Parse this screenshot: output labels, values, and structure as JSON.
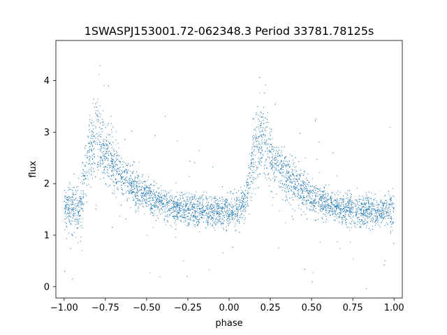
{
  "chart_data": {
    "type": "scatter",
    "title": "1SWASPJ153001.72-062348.3 Period 33781.78125s",
    "xlabel": "phase",
    "ylabel": "flux",
    "xlim": [
      -1.05,
      1.05
    ],
    "ylim": [
      -0.22,
      4.78
    ],
    "xticks": [
      -1.0,
      -0.75,
      -0.5,
      -0.25,
      0.0,
      0.25,
      0.5,
      0.75,
      1.0
    ],
    "xtick_labels": [
      "−1.00",
      "−0.75",
      "−0.50",
      "−0.25",
      "0.00",
      "0.25",
      "0.50",
      "0.75",
      "1.00"
    ],
    "yticks": [
      0,
      1,
      2,
      3,
      4
    ],
    "ytick_labels": [
      "0",
      "1",
      "2",
      "3",
      "4"
    ],
    "grid": false,
    "point_color": "#1f77b4",
    "series": [
      {
        "phase_profile": {
          "x": [
            -1.0,
            -0.95,
            -0.9,
            -0.85,
            -0.8,
            -0.75,
            -0.7,
            -0.65,
            -0.6,
            -0.55,
            -0.5,
            -0.45,
            -0.4,
            -0.35,
            -0.3,
            -0.25,
            -0.2,
            -0.15,
            -0.1,
            -0.05,
            0.0,
            0.05,
            0.1,
            0.15,
            0.2,
            0.25,
            0.3,
            0.35,
            0.4,
            0.45,
            0.5,
            0.55,
            0.6,
            0.65,
            0.7,
            0.75,
            0.8,
            0.85,
            0.9,
            0.95,
            1.0
          ],
          "y": [
            1.5,
            1.5,
            1.55,
            2.6,
            2.9,
            2.6,
            2.35,
            2.15,
            2.0,
            1.85,
            1.75,
            1.65,
            1.6,
            1.55,
            1.5,
            1.48,
            1.47,
            1.46,
            1.46,
            1.46,
            1.47,
            1.5,
            1.6,
            2.6,
            2.9,
            2.6,
            2.35,
            2.15,
            2.0,
            1.85,
            1.75,
            1.65,
            1.6,
            1.55,
            1.5,
            1.48,
            1.47,
            1.46,
            1.46,
            1.46,
            1.5
          ]
        },
        "scatter_sd": [
          0.22,
          0.22,
          0.25,
          0.35,
          0.35,
          0.3,
          0.25,
          0.22,
          0.2,
          0.18,
          0.17,
          0.16,
          0.15,
          0.15,
          0.15,
          0.15,
          0.15,
          0.15,
          0.15,
          0.15,
          0.15,
          0.16,
          0.2,
          0.35,
          0.35,
          0.3,
          0.25,
          0.22,
          0.2,
          0.18,
          0.17,
          0.16,
          0.15,
          0.15,
          0.15,
          0.15,
          0.15,
          0.15,
          0.15,
          0.15,
          0.2
        ]
      }
    ]
  }
}
